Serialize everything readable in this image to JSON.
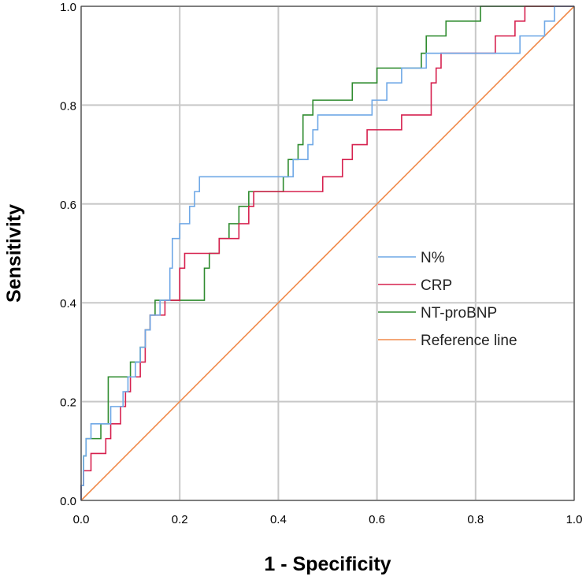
{
  "chart_data": {
    "type": "line",
    "title": "",
    "xlabel": "1 - Specificity",
    "ylabel": "Sensitivity",
    "xlim": [
      0,
      1
    ],
    "ylim": [
      0,
      1
    ],
    "grid": true,
    "x_ticks": [
      "0.0",
      "0.2",
      "0.4",
      "0.6",
      "0.8",
      "1.0"
    ],
    "y_ticks": [
      "0.0",
      "0.2",
      "0.4",
      "0.6",
      "0.8",
      "1.0"
    ],
    "legend_position": "center-right",
    "series": [
      {
        "name": "N%",
        "color": "#6fa8e6",
        "points": [
          [
            0,
            0
          ],
          [
            0,
            0.03
          ],
          [
            0.005,
            0.03
          ],
          [
            0.005,
            0.09
          ],
          [
            0.01,
            0.09
          ],
          [
            0.01,
            0.125
          ],
          [
            0.02,
            0.125
          ],
          [
            0.02,
            0.155
          ],
          [
            0.06,
            0.155
          ],
          [
            0.06,
            0.19
          ],
          [
            0.07,
            0.19
          ],
          [
            0.07,
            0.19
          ],
          [
            0.085,
            0.19
          ],
          [
            0.085,
            0.22
          ],
          [
            0.095,
            0.22
          ],
          [
            0.095,
            0.25
          ],
          [
            0.11,
            0.25
          ],
          [
            0.11,
            0.28
          ],
          [
            0.12,
            0.28
          ],
          [
            0.12,
            0.31
          ],
          [
            0.13,
            0.31
          ],
          [
            0.13,
            0.345
          ],
          [
            0.14,
            0.345
          ],
          [
            0.14,
            0.375
          ],
          [
            0.16,
            0.375
          ],
          [
            0.16,
            0.405
          ],
          [
            0.18,
            0.405
          ],
          [
            0.18,
            0.47
          ],
          [
            0.185,
            0.47
          ],
          [
            0.185,
            0.53
          ],
          [
            0.2,
            0.53
          ],
          [
            0.2,
            0.56
          ],
          [
            0.22,
            0.56
          ],
          [
            0.22,
            0.595
          ],
          [
            0.23,
            0.595
          ],
          [
            0.23,
            0.625
          ],
          [
            0.24,
            0.625
          ],
          [
            0.24,
            0.655
          ],
          [
            0.43,
            0.655
          ],
          [
            0.43,
            0.69
          ],
          [
            0.46,
            0.69
          ],
          [
            0.46,
            0.72
          ],
          [
            0.47,
            0.72
          ],
          [
            0.47,
            0.75
          ],
          [
            0.48,
            0.75
          ],
          [
            0.48,
            0.78
          ],
          [
            0.59,
            0.78
          ],
          [
            0.59,
            0.81
          ],
          [
            0.62,
            0.81
          ],
          [
            0.62,
            0.845
          ],
          [
            0.65,
            0.845
          ],
          [
            0.65,
            0.875
          ],
          [
            0.7,
            0.875
          ],
          [
            0.7,
            0.905
          ],
          [
            0.89,
            0.905
          ],
          [
            0.89,
            0.94
          ],
          [
            0.94,
            0.94
          ],
          [
            0.94,
            0.97
          ],
          [
            0.96,
            0.97
          ],
          [
            0.96,
            1.0
          ],
          [
            1.0,
            1.0
          ]
        ]
      },
      {
        "name": "CRP",
        "color": "#d6204e",
        "points": [
          [
            0,
            0
          ],
          [
            0,
            0.03
          ],
          [
            0.005,
            0.03
          ],
          [
            0.005,
            0.06
          ],
          [
            0.02,
            0.06
          ],
          [
            0.02,
            0.095
          ],
          [
            0.05,
            0.095
          ],
          [
            0.05,
            0.125
          ],
          [
            0.06,
            0.125
          ],
          [
            0.06,
            0.155
          ],
          [
            0.08,
            0.155
          ],
          [
            0.08,
            0.19
          ],
          [
            0.09,
            0.19
          ],
          [
            0.09,
            0.22
          ],
          [
            0.1,
            0.22
          ],
          [
            0.1,
            0.25
          ],
          [
            0.12,
            0.25
          ],
          [
            0.12,
            0.28
          ],
          [
            0.13,
            0.28
          ],
          [
            0.13,
            0.345
          ],
          [
            0.14,
            0.345
          ],
          [
            0.14,
            0.375
          ],
          [
            0.17,
            0.375
          ],
          [
            0.17,
            0.405
          ],
          [
            0.2,
            0.405
          ],
          [
            0.2,
            0.47
          ],
          [
            0.21,
            0.47
          ],
          [
            0.21,
            0.5
          ],
          [
            0.28,
            0.5
          ],
          [
            0.28,
            0.53
          ],
          [
            0.32,
            0.53
          ],
          [
            0.32,
            0.56
          ],
          [
            0.34,
            0.56
          ],
          [
            0.34,
            0.595
          ],
          [
            0.35,
            0.595
          ],
          [
            0.35,
            0.625
          ],
          [
            0.42,
            0.625
          ],
          [
            0.42,
            0.625
          ],
          [
            0.49,
            0.625
          ],
          [
            0.49,
            0.655
          ],
          [
            0.5,
            0.655
          ],
          [
            0.5,
            0.655
          ],
          [
            0.53,
            0.655
          ],
          [
            0.53,
            0.69
          ],
          [
            0.55,
            0.69
          ],
          [
            0.55,
            0.72
          ],
          [
            0.58,
            0.72
          ],
          [
            0.58,
            0.75
          ],
          [
            0.65,
            0.75
          ],
          [
            0.65,
            0.78
          ],
          [
            0.71,
            0.78
          ],
          [
            0.71,
            0.845
          ],
          [
            0.72,
            0.845
          ],
          [
            0.72,
            0.875
          ],
          [
            0.73,
            0.875
          ],
          [
            0.73,
            0.905
          ],
          [
            0.84,
            0.905
          ],
          [
            0.84,
            0.94
          ],
          [
            0.88,
            0.94
          ],
          [
            0.88,
            0.97
          ],
          [
            0.9,
            0.97
          ],
          [
            0.9,
            1.0
          ],
          [
            1.0,
            1.0
          ]
        ]
      },
      {
        "name": "NT-proBNP",
        "color": "#2e8b2e",
        "points": [
          [
            0,
            0
          ],
          [
            0,
            0.03
          ],
          [
            0.005,
            0.03
          ],
          [
            0.005,
            0.09
          ],
          [
            0.01,
            0.09
          ],
          [
            0.01,
            0.125
          ],
          [
            0.04,
            0.125
          ],
          [
            0.04,
            0.155
          ],
          [
            0.055,
            0.155
          ],
          [
            0.055,
            0.25
          ],
          [
            0.1,
            0.25
          ],
          [
            0.1,
            0.28
          ],
          [
            0.12,
            0.28
          ],
          [
            0.12,
            0.31
          ],
          [
            0.13,
            0.31
          ],
          [
            0.13,
            0.345
          ],
          [
            0.14,
            0.345
          ],
          [
            0.14,
            0.375
          ],
          [
            0.15,
            0.375
          ],
          [
            0.15,
            0.405
          ],
          [
            0.25,
            0.405
          ],
          [
            0.25,
            0.47
          ],
          [
            0.26,
            0.47
          ],
          [
            0.26,
            0.5
          ],
          [
            0.28,
            0.5
          ],
          [
            0.28,
            0.53
          ],
          [
            0.3,
            0.53
          ],
          [
            0.3,
            0.56
          ],
          [
            0.32,
            0.56
          ],
          [
            0.32,
            0.595
          ],
          [
            0.34,
            0.595
          ],
          [
            0.34,
            0.625
          ],
          [
            0.41,
            0.625
          ],
          [
            0.41,
            0.655
          ],
          [
            0.42,
            0.655
          ],
          [
            0.42,
            0.69
          ],
          [
            0.44,
            0.69
          ],
          [
            0.44,
            0.72
          ],
          [
            0.45,
            0.72
          ],
          [
            0.45,
            0.78
          ],
          [
            0.47,
            0.78
          ],
          [
            0.47,
            0.81
          ],
          [
            0.55,
            0.81
          ],
          [
            0.55,
            0.845
          ],
          [
            0.6,
            0.845
          ],
          [
            0.6,
            0.875
          ],
          [
            0.69,
            0.875
          ],
          [
            0.69,
            0.905
          ],
          [
            0.7,
            0.905
          ],
          [
            0.7,
            0.94
          ],
          [
            0.74,
            0.94
          ],
          [
            0.74,
            0.97
          ],
          [
            0.81,
            0.97
          ],
          [
            0.81,
            1.0
          ],
          [
            1.0,
            1.0
          ]
        ]
      },
      {
        "name": "Reference line",
        "color": "#f08a4b",
        "points": [
          [
            0,
            0
          ],
          [
            1,
            1
          ]
        ]
      }
    ]
  }
}
